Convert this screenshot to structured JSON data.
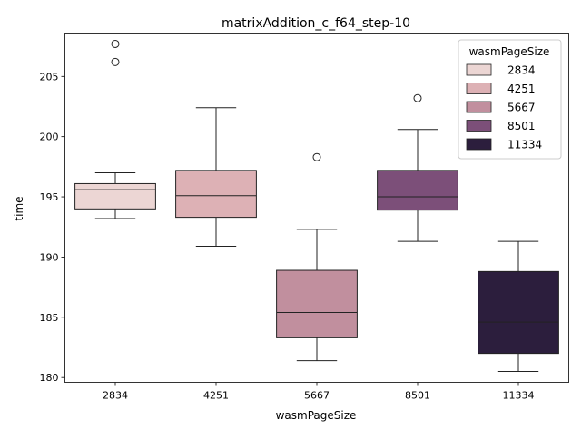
{
  "chart_data": {
    "type": "box",
    "title": "matrixAddition_c_f64_step-10",
    "xlabel": "wasmPageSize",
    "ylabel": "time",
    "categories": [
      "2834",
      "4251",
      "5667",
      "8501",
      "11334"
    ],
    "ylim": [
      179.6,
      208.6
    ],
    "yticks": [
      180,
      185,
      190,
      195,
      200,
      205
    ],
    "grid": false,
    "legend": {
      "title": "wasmPageSize",
      "position": "top-right",
      "entries": [
        "2834",
        "4251",
        "5667",
        "8501",
        "11334"
      ]
    },
    "boxes": [
      {
        "category": "2834",
        "whisker_low": 193.2,
        "q1": 194.0,
        "median": 195.6,
        "q3": 196.1,
        "whisker_high": 197.0,
        "outliers": [
          207.7,
          206.2
        ],
        "color": "#ecd6d4"
      },
      {
        "category": "4251",
        "whisker_low": 190.9,
        "q1": 193.3,
        "median": 195.1,
        "q3": 197.2,
        "whisker_high": 202.4,
        "outliers": [],
        "color": "#ddb1b5"
      },
      {
        "category": "5667",
        "whisker_low": 181.4,
        "q1": 183.3,
        "median": 185.4,
        "q3": 188.9,
        "whisker_high": 192.3,
        "outliers": [
          198.3
        ],
        "color": "#c18f9e"
      },
      {
        "category": "8501",
        "whisker_low": 191.3,
        "q1": 193.9,
        "median": 195.0,
        "q3": 197.2,
        "whisker_high": 200.6,
        "outliers": [
          203.2
        ],
        "color": "#7c4f79"
      },
      {
        "category": "11334",
        "whisker_low": 180.5,
        "q1": 182.0,
        "median": 184.6,
        "q3": 188.8,
        "whisker_high": 191.3,
        "outliers": [],
        "color": "#2c1e3d"
      }
    ]
  }
}
